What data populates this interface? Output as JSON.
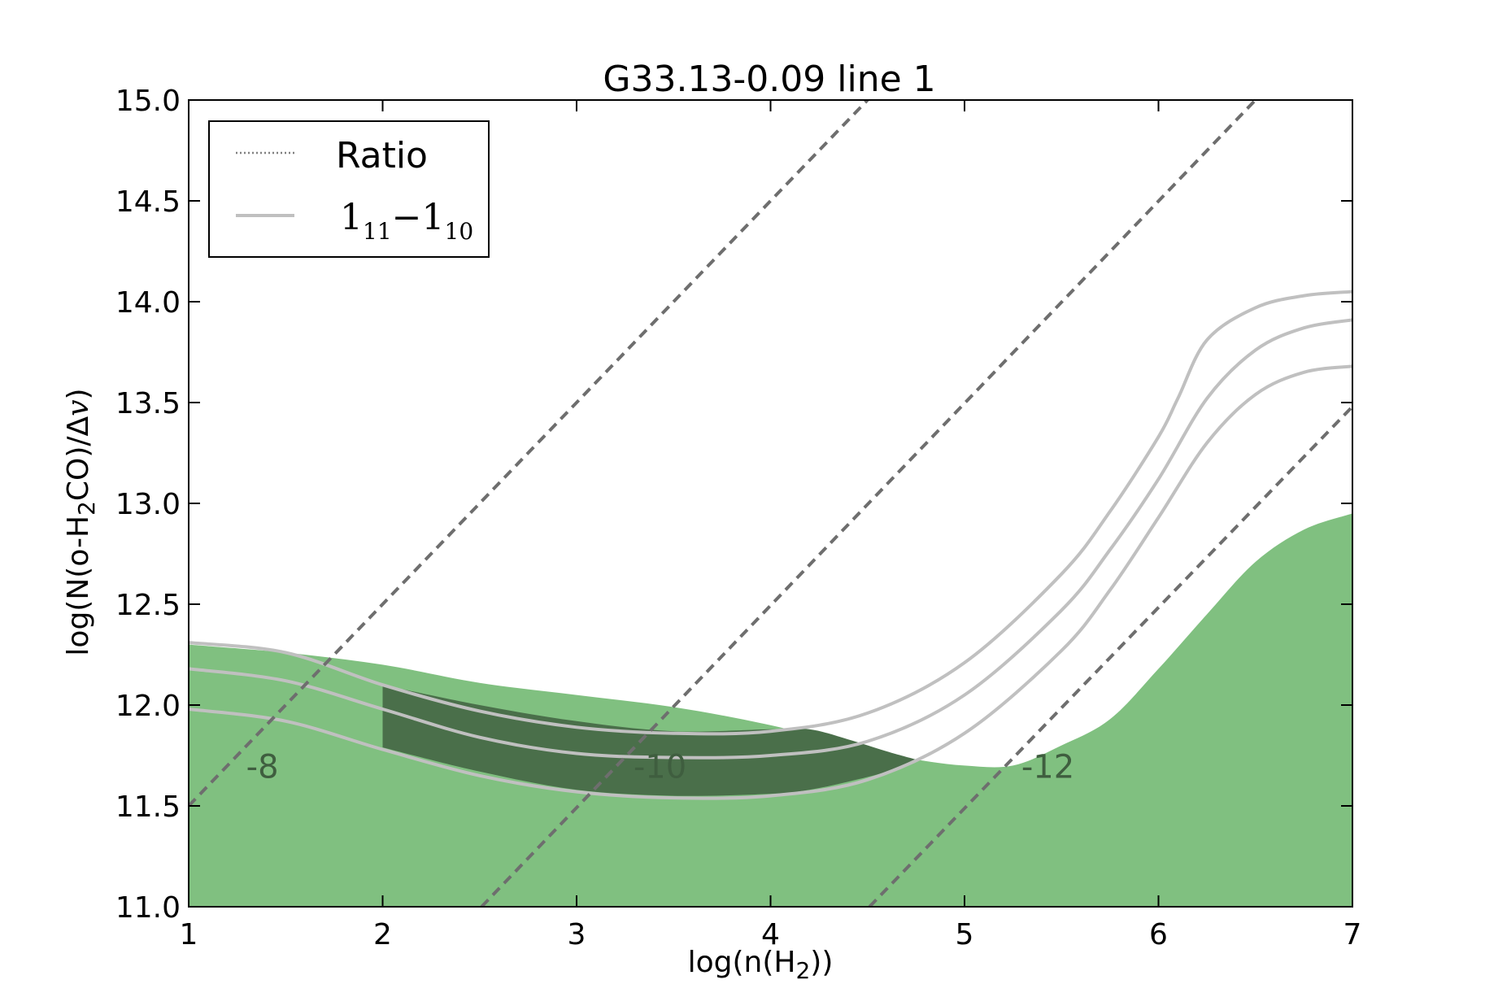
{
  "chart_data": {
    "type": "line",
    "title": "G33.13-0.09 line 1",
    "xlabel": {
      "main": "log(n(H",
      "sub": "2",
      "tail": "))"
    },
    "ylabel": {
      "main": "log(N(o-H",
      "sub": "2",
      "tail": "CO)/Δ",
      "var": "v",
      "close": ")"
    },
    "xlim": [
      1,
      7
    ],
    "ylim": [
      11.0,
      15.0
    ],
    "x_ticks": [
      1,
      2,
      3,
      4,
      5,
      6,
      7
    ],
    "x_tick_labels": [
      "1",
      "2",
      "3",
      "4",
      "5",
      "6",
      "7"
    ],
    "y_ticks": [
      11.0,
      11.5,
      12.0,
      12.5,
      13.0,
      13.5,
      14.0,
      14.5,
      15.0
    ],
    "y_tick_labels": [
      "11.0",
      "11.5",
      "12.0",
      "12.5",
      "13.0",
      "13.5",
      "14.0",
      "14.5",
      "15.0"
    ],
    "grid": false,
    "legend": {
      "placement": "top-left",
      "entries": [
        {
          "name": "Ratio",
          "style": "dotted",
          "color": "#7f7f7f"
        },
        {
          "name_base1": "1",
          "name_sub1": "11",
          "name_dash": "−",
          "name_base2": "1",
          "name_sub2": "10",
          "style": "solid",
          "color": "#c0c0c0"
        }
      ]
    },
    "ratio_contours": {
      "color": "#6e6e6e",
      "style": "dashed",
      "lines": [
        {
          "label": "-8",
          "label_at": [
            1.38,
            11.64
          ],
          "x": [
            1.0,
            4.5
          ],
          "y": [
            11.5,
            15.0
          ]
        },
        {
          "label": "-10",
          "label_at": [
            3.43,
            11.64
          ],
          "x": [
            2.51,
            6.5
          ],
          "y": [
            11.0,
            15.0
          ]
        },
        {
          "label": "-12",
          "label_at": [
            5.43,
            11.64
          ],
          "x": [
            4.51,
            7.0
          ],
          "y": [
            11.0,
            13.48
          ]
        }
      ]
    },
    "green_region": {
      "color": "#80c080",
      "upper_boundary": {
        "x": [
          1.0,
          1.5,
          2.0,
          2.5,
          3.0,
          3.5,
          4.0,
          4.5,
          4.75,
          5.0,
          5.25,
          5.5,
          5.75,
          6.0,
          6.25,
          6.5,
          6.75,
          7.0
        ],
        "y": [
          12.3,
          12.26,
          12.2,
          12.11,
          12.05,
          11.99,
          11.9,
          11.78,
          11.73,
          11.7,
          11.7,
          11.8,
          11.93,
          12.18,
          12.45,
          12.71,
          12.87,
          12.95
        ]
      }
    },
    "dark_region": {
      "color": "#4a6f4a",
      "description_free": true,
      "x": [
        2.0,
        2.5,
        3.0,
        3.5,
        4.0,
        4.2,
        4.4,
        4.6,
        4.75
      ],
      "y_top": [
        12.1,
        12.0,
        11.92,
        11.87,
        11.88,
        11.88,
        11.83,
        11.77,
        11.73
      ],
      "y_bottom": [
        11.79,
        11.67,
        11.58,
        11.55,
        11.56,
        11.58,
        11.62,
        11.67,
        11.73
      ]
    },
    "series": [
      {
        "color": "#c0c0c0",
        "x": [
          1.0,
          1.5,
          2.0,
          2.5,
          3.0,
          3.5,
          4.0,
          4.5,
          5.0,
          5.5,
          5.75,
          6.0,
          6.1,
          6.25,
          6.5,
          6.75,
          7.0
        ],
        "y": [
          12.31,
          12.26,
          12.1,
          11.97,
          11.89,
          11.86,
          11.87,
          11.96,
          12.21,
          12.65,
          12.96,
          13.33,
          13.52,
          13.81,
          13.97,
          14.03,
          14.05
        ]
      },
      {
        "color": "#c0c0c0",
        "x": [
          1.0,
          1.5,
          2.0,
          2.5,
          3.0,
          3.5,
          4.0,
          4.5,
          5.0,
          5.5,
          5.75,
          6.0,
          6.25,
          6.5,
          6.75,
          7.0
        ],
        "y": [
          12.18,
          12.12,
          11.98,
          11.84,
          11.76,
          11.74,
          11.75,
          11.82,
          12.05,
          12.47,
          12.77,
          13.12,
          13.52,
          13.76,
          13.87,
          13.91
        ]
      },
      {
        "color": "#c0c0c0",
        "x": [
          1.0,
          1.5,
          2.0,
          2.5,
          3.0,
          3.5,
          4.0,
          4.5,
          5.0,
          5.5,
          5.75,
          6.0,
          6.25,
          6.5,
          6.75,
          7.0
        ],
        "y": [
          11.98,
          11.92,
          11.78,
          11.65,
          11.57,
          11.54,
          11.55,
          11.63,
          11.86,
          12.27,
          12.57,
          12.93,
          13.3,
          13.54,
          13.65,
          13.68
        ]
      }
    ]
  }
}
